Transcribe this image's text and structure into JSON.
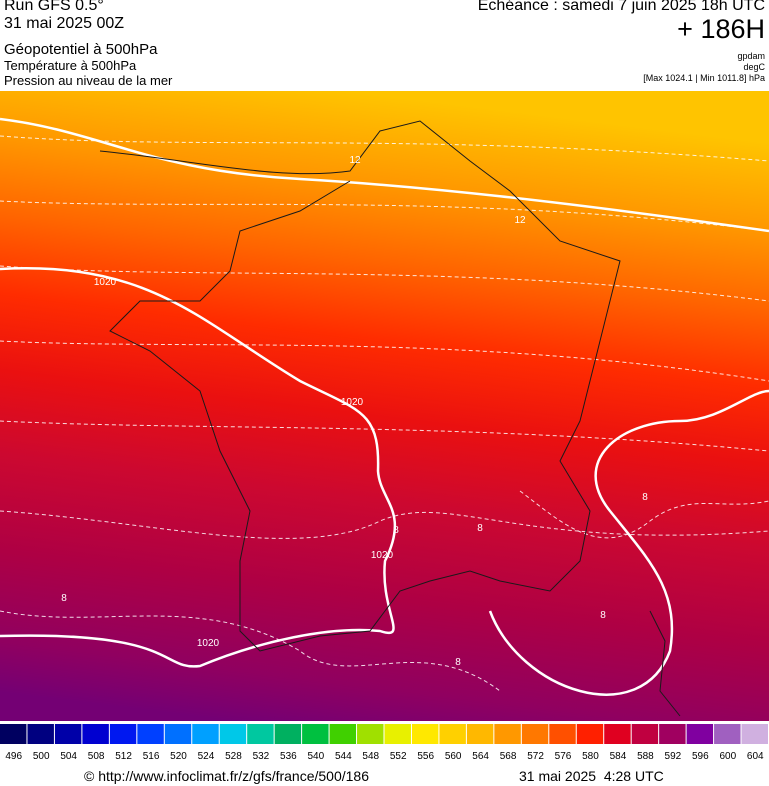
{
  "header": {
    "run": "Run GFS 0.5°",
    "run_date": "31 mai 2025 00Z",
    "field_1": "Géopotentiel à 500hPa",
    "field_2": "Température à 500hPa",
    "field_3": "Pression au niveau de la mer",
    "forecast_time": "Echéance : samedi 7 juin 2025 18h UTC",
    "lead": "+ 186H",
    "unit_1": "gpdam",
    "unit_2": "degC",
    "pressure_range": "[Max 1024.1 | Min 1011.8] hPa"
  },
  "map": {
    "contour_labels": [
      "1020",
      "1020",
      "1020",
      "1020",
      "12",
      "12",
      "8",
      "8",
      "8",
      "8",
      "8",
      "8"
    ]
  },
  "colorbar": {
    "labels": [
      496,
      500,
      504,
      508,
      512,
      516,
      520,
      524,
      528,
      532,
      536,
      540,
      544,
      548,
      552,
      556,
      560,
      564,
      568,
      572,
      576,
      580,
      584,
      588,
      592,
      596,
      600,
      604
    ],
    "colors": [
      "#000060",
      "#000080",
      "#0000a8",
      "#0000d0",
      "#0018f0",
      "#0040ff",
      "#0070ff",
      "#00a0ff",
      "#00c8e8",
      "#00c8a0",
      "#00b060",
      "#00c040",
      "#40d000",
      "#a0e000",
      "#e8f000",
      "#ffe800",
      "#ffd000",
      "#ffb800",
      "#ff9800",
      "#ff7800",
      "#ff5000",
      "#ff2000",
      "#e00020",
      "#c00040",
      "#a00060",
      "#8000a0",
      "#a060c0",
      "#d0b0e0"
    ]
  },
  "footer": {
    "url": "© http://www.infoclimat.fr/z/gfs/france/500/186",
    "timestamp": "31 mai 2025  4:28 UTC"
  }
}
